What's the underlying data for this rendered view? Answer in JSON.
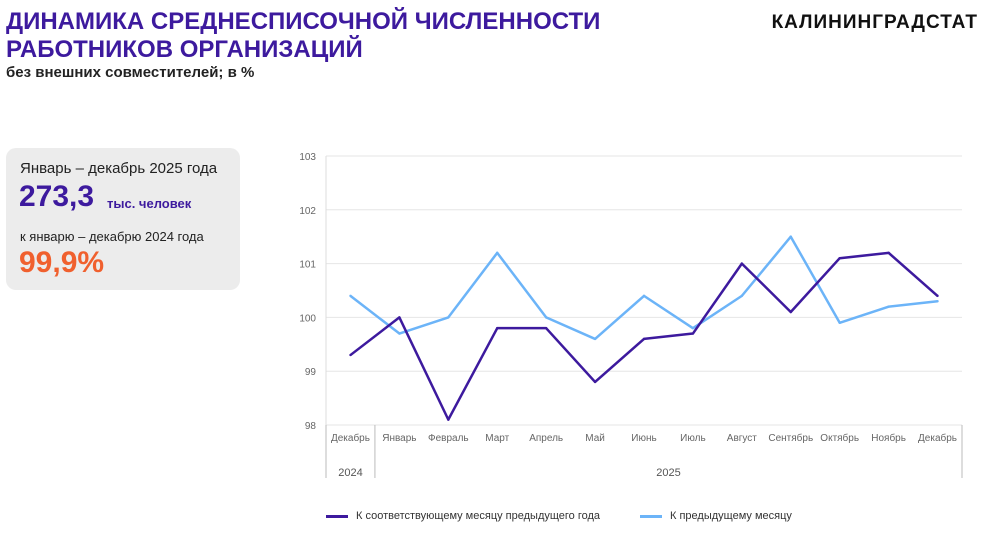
{
  "header": {
    "title": "ДИНАМИКА СРЕДНЕСПИСОЧНОЙ ЧИСЛЕННОСТИ РАБОТНИКОВ ОРГАНИЗАЦИЙ",
    "subtitle": "без внешних совместителей; в %",
    "brand": "КАЛИНИНГРАДСТАТ"
  },
  "card": {
    "period": "Январь – декабрь 2025 года",
    "value": "273,3",
    "unit": "тыс. человек",
    "compare": "к январю – декабрю 2024 года",
    "percent": "99,9%"
  },
  "colors": {
    "series1": "#3d1a9e",
    "series2": "#6cb4f8"
  },
  "chart_data": {
    "type": "line",
    "categories": [
      "Декабрь",
      "Январь",
      "Февраль",
      "Март",
      "Апрель",
      "Май",
      "Июнь",
      "Июль",
      "Август",
      "Сентябрь",
      "Октябрь",
      "Ноябрь",
      "Декабрь"
    ],
    "groups": [
      {
        "label": "2024",
        "count": 1
      },
      {
        "label": "2025",
        "count": 12
      }
    ],
    "ylim": [
      98,
      103
    ],
    "yticks": [
      "98",
      "99",
      "100",
      "101",
      "102",
      "103"
    ],
    "series": [
      {
        "name": "К соответствующему месяцу предыдущего года",
        "values": [
          99.3,
          100.0,
          98.1,
          99.8,
          99.8,
          98.8,
          99.6,
          99.7,
          101.0,
          100.1,
          101.1,
          101.2,
          100.4
        ]
      },
      {
        "name": "К предыдущему месяцу",
        "values": [
          100.4,
          99.7,
          100.0,
          101.2,
          100.0,
          99.6,
          100.4,
          99.8,
          100.4,
          101.5,
          99.9,
          100.2,
          100.3
        ]
      }
    ],
    "legend": "bottom"
  }
}
